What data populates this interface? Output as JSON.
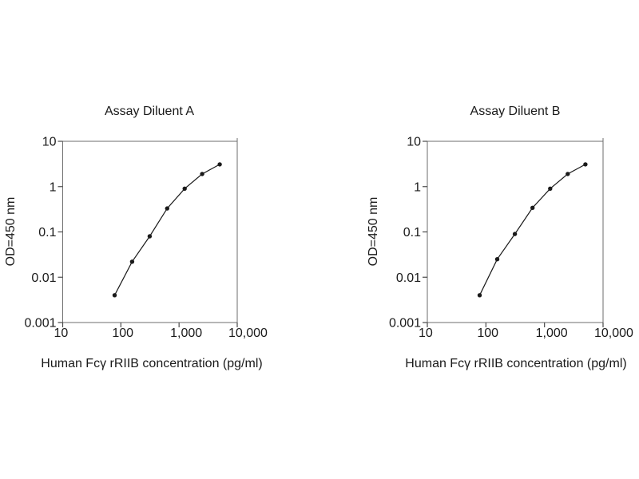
{
  "figure": {
    "background": "#ffffff",
    "text_color": "#1a1a1a",
    "curve_color": "#1a1a1a",
    "frame_color": "#6e6e6e",
    "tick_color": "#4a4a4a"
  },
  "chart_data": [
    {
      "type": "line",
      "title": "Assay Diluent A",
      "xlabel": "Human Fcγ rRIIB concentration (pg/ml)",
      "ylabel": "OD=450 nm",
      "x_scale": "log",
      "y_scale": "log",
      "xlim": [
        10,
        10000
      ],
      "ylim": [
        0.001,
        10
      ],
      "x_ticks": [
        10,
        100,
        1000,
        10000
      ],
      "x_tick_labels": [
        "10",
        "100",
        "1,000",
        "10,000"
      ],
      "y_ticks": [
        10,
        1,
        0.1,
        0.01,
        0.001
      ],
      "y_tick_labels": [
        "10",
        "1",
        "0.1",
        "0.01",
        "0.001"
      ],
      "grid": false,
      "legend": null,
      "marker": "filled-circle",
      "x": [
        78.125,
        156.25,
        312.5,
        625,
        1250,
        2500,
        5000
      ],
      "y": [
        0.004,
        0.022,
        0.08,
        0.33,
        0.9,
        1.9,
        3.1
      ]
    },
    {
      "type": "line",
      "title": "Assay Diluent B",
      "xlabel": "Human Fcγ rRIIB concentration (pg/ml)",
      "ylabel": "OD=450 nm",
      "x_scale": "log",
      "y_scale": "log",
      "xlim": [
        10,
        10000
      ],
      "ylim": [
        0.001,
        10
      ],
      "x_ticks": [
        10,
        100,
        1000,
        10000
      ],
      "x_tick_labels": [
        "10",
        "100",
        "1,000",
        "10,000"
      ],
      "y_ticks": [
        10,
        1,
        0.1,
        0.01,
        0.001
      ],
      "y_tick_labels": [
        "10",
        "1",
        "0.1",
        "0.01",
        "0.001"
      ],
      "grid": false,
      "legend": null,
      "marker": "filled-circle",
      "x": [
        78.125,
        156.25,
        312.5,
        625,
        1250,
        2500,
        5000
      ],
      "y": [
        0.004,
        0.025,
        0.09,
        0.34,
        0.9,
        1.9,
        3.1
      ]
    }
  ]
}
